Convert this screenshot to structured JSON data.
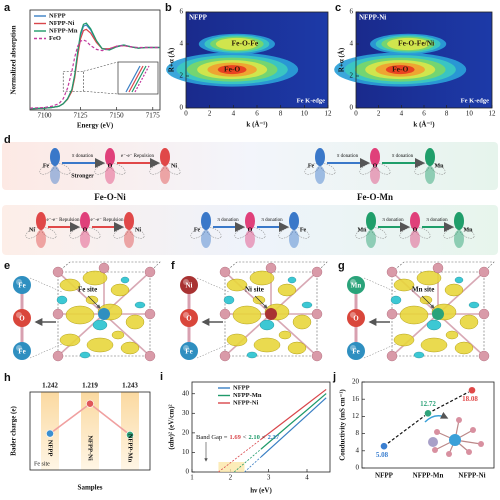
{
  "chart_data": [
    {
      "label": "a",
      "type": "line",
      "xlabel": "Energy (eV)",
      "ylabel": "Normalized absorption",
      "xlim": [
        7090,
        7180
      ],
      "xticks": [
        7100,
        7125,
        7150,
        7175
      ],
      "ylim": [
        0,
        1.6
      ],
      "legend": "upper left",
      "x": [
        7090,
        7100,
        7105,
        7110,
        7113,
        7116,
        7119,
        7121,
        7123,
        7125,
        7127,
        7129,
        7132,
        7136,
        7140,
        7145,
        7150,
        7155,
        7160,
        7165,
        7170,
        7180
      ],
      "series": [
        {
          "name": "NFPP",
          "color": "#3a7fc4",
          "values": [
            0.02,
            0.03,
            0.04,
            0.06,
            0.1,
            0.18,
            0.32,
            0.55,
            0.9,
            1.2,
            1.34,
            1.36,
            1.28,
            1.1,
            0.98,
            0.97,
            1.02,
            1.04,
            1.01,
            0.99,
            1.0,
            1.0
          ]
        },
        {
          "name": "NFPP-Ni",
          "color": "#d9464b",
          "values": [
            0.02,
            0.03,
            0.04,
            0.06,
            0.1,
            0.17,
            0.3,
            0.52,
            0.86,
            1.14,
            1.27,
            1.29,
            1.23,
            1.08,
            0.98,
            0.98,
            1.02,
            1.03,
            1.01,
            0.99,
            1.0,
            1.0
          ]
        },
        {
          "name": "NFPP-Mn",
          "color": "#1f9a6a",
          "values": [
            0.02,
            0.03,
            0.04,
            0.06,
            0.1,
            0.18,
            0.33,
            0.57,
            0.93,
            1.23,
            1.37,
            1.39,
            1.3,
            1.11,
            0.98,
            0.96,
            1.01,
            1.04,
            1.01,
            0.99,
            1.0,
            1.0
          ]
        },
        {
          "name": "FeO",
          "color": "#c23a9e",
          "dash": true,
          "values": [
            0.03,
            0.04,
            0.06,
            0.1,
            0.18,
            0.35,
            0.62,
            0.85,
            1.02,
            1.1,
            1.12,
            1.1,
            1.03,
            0.97,
            0.95,
            0.98,
            1.02,
            1.03,
            1.01,
            1.0,
            1.0,
            1.0
          ]
        }
      ]
    },
    {
      "label": "b",
      "type": "contour",
      "title": "NFPP",
      "edge_label": "Fe K-edge",
      "xlabel": "k (Å⁻¹)",
      "ylabel": "R+α (Å)",
      "xlim": [
        0,
        12
      ],
      "xticks": [
        0,
        2,
        4,
        6,
        8,
        10,
        12
      ],
      "ylim": [
        0,
        6
      ],
      "yticks": [
        0,
        2,
        4,
        6
      ],
      "peaks": [
        {
          "label": "Fe-O",
          "x": 3.9,
          "y": 2.4
        },
        {
          "label": "Fe-O-Fe",
          "x": 4.3,
          "y": 4.0
        }
      ]
    },
    {
      "label": "c",
      "type": "contour",
      "title": "NFPP-Ni",
      "edge_label": "Fe K-edge",
      "xlabel": "k (Å⁻¹)",
      "ylabel": "R+α (Å)",
      "xlim": [
        0,
        12
      ],
      "xticks": [
        0,
        2,
        4,
        6,
        8,
        10,
        12
      ],
      "ylim": [
        0,
        6
      ],
      "yticks": [
        0,
        2,
        4,
        6
      ],
      "peaks": [
        {
          "label": "Fe-O",
          "x": 3.9,
          "y": 2.4
        },
        {
          "label": "Fe-O-Fe/Ni",
          "x": 4.6,
          "y": 4.0
        }
      ]
    },
    {
      "label": "h",
      "type": "point",
      "xlabel": "Samples",
      "ylabel": "Bader charge (e)",
      "site_label": "Fe site",
      "categories": [
        "NFPP",
        "NFPP-Ni",
        "NFPP-Mn"
      ],
      "values": [
        1.242,
        1.219,
        1.243
      ],
      "colors": [
        "#3b8fd0",
        "#e0575a",
        "#2fa37a"
      ],
      "connector_color": "#f0a0a0",
      "ylim": [
        1.27,
        1.21
      ]
    },
    {
      "label": "i",
      "type": "line",
      "xlabel": "hν (eV)",
      "ylabel": "(αhν)² (eV/cm)²",
      "annotation": "Band Gap =",
      "separator": "<",
      "xlim": [
        1,
        4.6
      ],
      "xticks": [
        1,
        2,
        3,
        4
      ],
      "ylim": [
        0,
        46
      ],
      "yticks": [
        0,
        10,
        20,
        30,
        40
      ],
      "legend": "upper left",
      "x": [
        2.8,
        3.2,
        3.6,
        4.0,
        4.5
      ],
      "series": [
        {
          "name": "NFPP",
          "color": "#3a7fc4",
          "band_gap": 2.37,
          "values": [
            7.7,
            14.8,
            21.9,
            29.0,
            37.9
          ]
        },
        {
          "name": "NFPP-Mn",
          "color": "#1f9a6a",
          "band_gap": 2.1,
          "band_gap_label": "2.10",
          "values": [
            11.7,
            18.4,
            25.1,
            31.7,
            40.1
          ]
        },
        {
          "name": "NFPP-Ni",
          "color": "#d9464b",
          "band_gap": 1.69,
          "values": [
            16.7,
            22.7,
            28.7,
            34.7,
            42.2
          ]
        }
      ]
    },
    {
      "label": "j",
      "type": "point",
      "ylabel": "Conductivity (mS cm⁻¹)",
      "categories": [
        "NFPP",
        "NFPP-Mn",
        "NFPP-Ni"
      ],
      "values": [
        5.08,
        12.72,
        18.08
      ],
      "colors": [
        "#3b7fd0",
        "#2fa37a",
        "#e04848"
      ],
      "connector_color": "#111",
      "connector_dash": true,
      "ylim": [
        0,
        20
      ],
      "yticks": [
        0,
        4,
        8,
        12,
        16,
        20
      ]
    }
  ],
  "figure_d": {
    "label": "d",
    "groups": [
      {
        "atoms": [
          {
            "symbol": "Fe",
            "color": "#3a78c9"
          },
          {
            "symbol": "O",
            "color": "#e0407a"
          },
          {
            "symbol": "Ni",
            "color": "#e04848"
          }
        ],
        "links": [
          "π donation",
          "e⁻-e⁻ Repulsion"
        ],
        "note": "Stronger",
        "title": "Fe-O-Ni"
      },
      {
        "atoms": [
          {
            "symbol": "Fe",
            "color": "#3a78c9"
          },
          {
            "symbol": "O",
            "color": "#e0407a"
          },
          {
            "symbol": "Mn",
            "color": "#1f9e6a"
          }
        ],
        "links": [
          "π donation",
          "π donation"
        ],
        "title": "Fe-O-Mn"
      },
      {
        "atoms": [
          {
            "symbol": "Ni",
            "color": "#e04848"
          },
          {
            "symbol": "O",
            "color": "#e0407a"
          },
          {
            "symbol": "Ni",
            "color": "#e04848"
          }
        ],
        "links": [
          "e⁻-e⁻ Repulsion",
          "e⁻-e⁻ Repulsion"
        ]
      },
      {
        "atoms": [
          {
            "symbol": "Fe",
            "color": "#3a78c9"
          },
          {
            "symbol": "O",
            "color": "#e0407a"
          },
          {
            "symbol": "Fe",
            "color": "#3a78c9"
          }
        ],
        "links": [
          "π donation",
          "π donation"
        ]
      },
      {
        "atoms": [
          {
            "symbol": "Mn",
            "color": "#1f9e6a"
          },
          {
            "symbol": "O",
            "color": "#e0407a"
          },
          {
            "symbol": "Mn",
            "color": "#1f9e6a"
          }
        ],
        "links": [
          "π donation",
          "π donation"
        ]
      }
    ]
  },
  "structures": [
    {
      "label": "e",
      "site": "Fe site",
      "atoms": [
        {
          "symbol": "Fe",
          "color": "#2f8fc0"
        },
        {
          "symbol": "O",
          "color": "#d9463b"
        },
        {
          "symbol": "Fe",
          "color": "#2f8fc0"
        }
      ]
    },
    {
      "label": "f",
      "site": "Ni site",
      "atoms": [
        {
          "symbol": "Ni",
          "color": "#a83232"
        },
        {
          "symbol": "O",
          "color": "#d9463b"
        },
        {
          "symbol": "Fe",
          "color": "#2f8fc0"
        }
      ]
    },
    {
      "label": "g",
      "site": "Mn site",
      "atoms": [
        {
          "symbol": "Mn",
          "color": "#2aa37a"
        },
        {
          "symbol": "O",
          "color": "#d9463b"
        },
        {
          "symbol": "Fe",
          "color": "#2f8fc0"
        }
      ]
    }
  ]
}
